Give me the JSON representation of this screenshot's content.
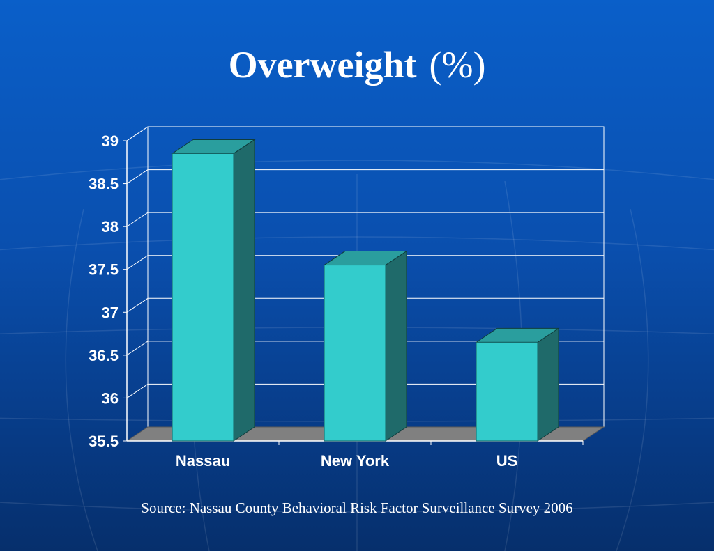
{
  "title": {
    "main": "Overweight",
    "unit": "(%)"
  },
  "source": "Source: Nassau County Behavioral Risk Factor Surveillance Survey 2006",
  "colors": {
    "background": "#0a52b4",
    "bar_front": "#33cccc",
    "bar_top": "#2a9e9e",
    "bar_side": "#1f6a6a",
    "floor": "#808080",
    "grid": "#ffffff",
    "text": "#ffffff"
  },
  "chart_data": {
    "type": "bar",
    "categories": [
      "Nassau",
      "New York",
      "US"
    ],
    "values": [
      38.85,
      37.55,
      36.65
    ],
    "ylim": [
      35.5,
      39
    ],
    "yticks": [
      "35.5",
      "36",
      "36.5",
      "37",
      "37.5",
      "38",
      "38.5",
      "39"
    ],
    "grid": true,
    "style": "3d"
  }
}
